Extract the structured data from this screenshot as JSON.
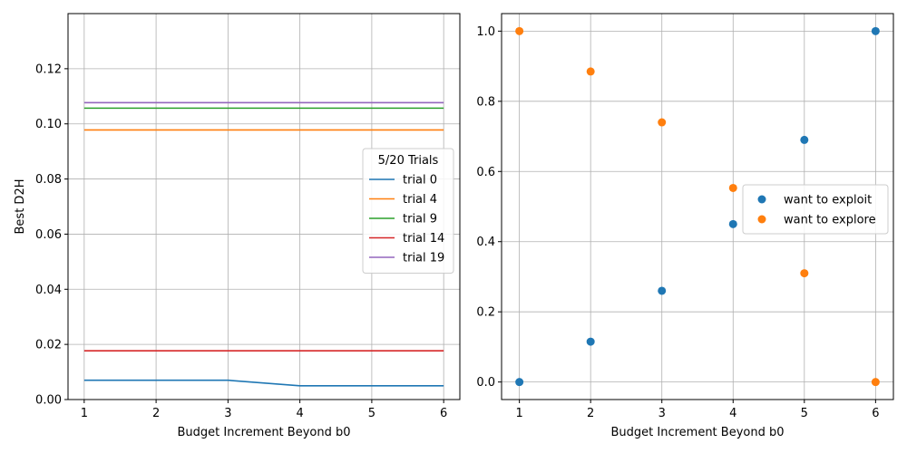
{
  "chart_data": [
    {
      "type": "line",
      "xlabel": "Budget Increment Beyond b0",
      "ylabel": "Best D2H",
      "xlim": [
        0.775,
        6.225
      ],
      "ylim": [
        0,
        0.14
      ],
      "xticks": [
        1,
        2,
        3,
        4,
        5,
        6
      ],
      "yticks": [
        0.0,
        0.02,
        0.04,
        0.06,
        0.08,
        0.1,
        0.12
      ],
      "ytick_labels": [
        "0.00",
        "0.02",
        "0.04",
        "0.06",
        "0.08",
        "0.10",
        "0.12"
      ],
      "grid": true,
      "legend": {
        "title": "5/20 Trials",
        "placement": "center-right"
      },
      "x": [
        1,
        2,
        3,
        4,
        5,
        6
      ],
      "series": [
        {
          "name": "trial 0",
          "color": "#1f77b4",
          "values": [
            0.007,
            0.007,
            0.007,
            0.005,
            0.005,
            0.005
          ]
        },
        {
          "name": "trial 4",
          "color": "#ff7f0e",
          "values": [
            0.0978,
            0.0978,
            0.0978,
            0.0978,
            0.0978,
            0.0978
          ]
        },
        {
          "name": "trial 9",
          "color": "#2ca02c",
          "values": [
            0.1057,
            0.1057,
            0.1057,
            0.1057,
            0.1057,
            0.1057
          ]
        },
        {
          "name": "trial 14",
          "color": "#d62728",
          "values": [
            0.0177,
            0.0177,
            0.0177,
            0.0177,
            0.0177,
            0.0177
          ]
        },
        {
          "name": "trial 19",
          "color": "#9467bd",
          "values": [
            0.1077,
            0.1077,
            0.1077,
            0.1077,
            0.1077,
            0.1077
          ]
        }
      ]
    },
    {
      "type": "scatter",
      "xlabel": "Budget Increment Beyond b0",
      "ylabel": "",
      "xlim": [
        0.75,
        6.25
      ],
      "ylim": [
        -0.05,
        1.05
      ],
      "xticks": [
        1,
        2,
        3,
        4,
        5,
        6
      ],
      "yticks": [
        0.0,
        0.2,
        0.4,
        0.6,
        0.8,
        1.0
      ],
      "ytick_labels": [
        "0.0",
        "0.2",
        "0.4",
        "0.6",
        "0.8",
        "1.0"
      ],
      "grid": true,
      "legend": {
        "title": "",
        "placement": "center-right"
      },
      "series": [
        {
          "name": "want to exploit",
          "color": "#1f77b4",
          "x": [
            1,
            2,
            3,
            4,
            5,
            6
          ],
          "values": [
            0.0,
            0.115,
            0.26,
            0.45,
            0.69,
            1.0
          ]
        },
        {
          "name": "want to explore",
          "color": "#ff7f0e",
          "x": [
            1,
            2,
            3,
            4,
            5,
            6
          ],
          "values": [
            1.0,
            0.885,
            0.74,
            0.553,
            0.31,
            0.0
          ]
        }
      ]
    }
  ]
}
